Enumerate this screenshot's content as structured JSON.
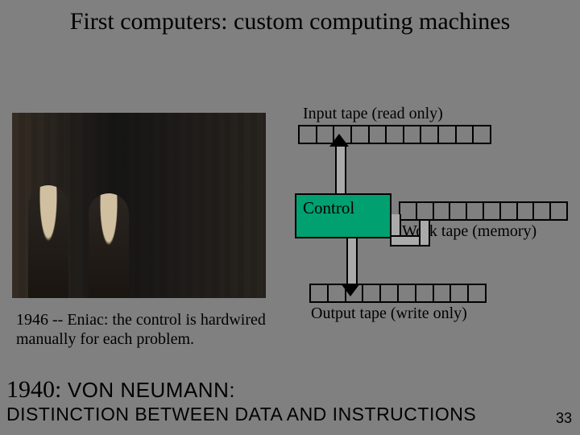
{
  "title": "First computers: custom computing machines",
  "caption": "1946 -- Eniac: the control is hardwired manually for each problem.",
  "diagram": {
    "input_label": "Input tape (read only)",
    "control_label": "Control",
    "work_label": "Work tape (memory)",
    "output_label": "Output tape (write only)",
    "input_cells": 11,
    "work_cells": 10,
    "output_cells": 10,
    "control_bg": "#00a070",
    "connector_fill": "#aaaaaa",
    "connector_stroke": "#000000"
  },
  "bottom": {
    "year": "1940:",
    "name": "VON NEUMANN:",
    "line2": "DISTINCTION BETWEEN DATA AND INSTRUCTIONS"
  },
  "page_number": "33",
  "colors": {
    "background": "#808080",
    "text": "#000000"
  }
}
